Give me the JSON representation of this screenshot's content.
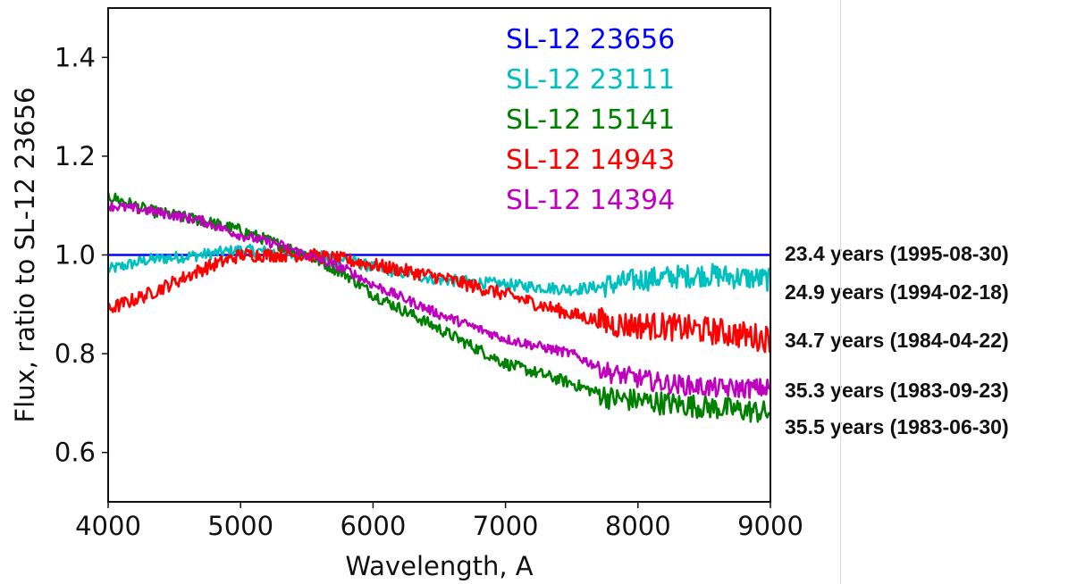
{
  "chart_data": {
    "type": "line",
    "xlabel": "Wavelength, A",
    "ylabel": "Flux, ratio to SL-12 23656",
    "xlim": [
      4000,
      9000
    ],
    "ylim": [
      0.5,
      1.5
    ],
    "xticks": [
      4000,
      5000,
      6000,
      7000,
      8000,
      9000
    ],
    "yticks": [
      0.6,
      0.8,
      1.0,
      1.2,
      1.4
    ],
    "grid": false,
    "legend_position": "top-center (inside plot)",
    "series": [
      {
        "name": "SL-12 23656",
        "color": "#0000ff",
        "noise": 0,
        "points": [
          [
            4000,
            1.0
          ],
          [
            9000,
            1.0
          ]
        ]
      },
      {
        "name": "SL-12 23111",
        "color": "#00bfbf",
        "noise": 0.012,
        "points": [
          [
            4000,
            0.97
          ],
          [
            4300,
            0.99
          ],
          [
            4700,
            1.0
          ],
          [
            5000,
            1.01
          ],
          [
            5300,
            1.005
          ],
          [
            5500,
            1.0
          ],
          [
            5800,
            0.99
          ],
          [
            6000,
            0.975
          ],
          [
            6500,
            0.95
          ],
          [
            7000,
            0.94
          ],
          [
            7500,
            0.93
          ],
          [
            7700,
            0.935
          ],
          [
            8000,
            0.95
          ],
          [
            8500,
            0.96
          ],
          [
            9000,
            0.95
          ]
        ]
      },
      {
        "name": "SL-12 15141",
        "color": "#008000",
        "noise": 0.012,
        "points": [
          [
            4000,
            1.12
          ],
          [
            4300,
            1.09
          ],
          [
            4700,
            1.07
          ],
          [
            5000,
            1.05
          ],
          [
            5300,
            1.02
          ],
          [
            5500,
            1.0
          ],
          [
            5800,
            0.96
          ],
          [
            6000,
            0.92
          ],
          [
            6500,
            0.85
          ],
          [
            7000,
            0.78
          ],
          [
            7500,
            0.74
          ],
          [
            7800,
            0.71
          ],
          [
            8200,
            0.7
          ],
          [
            8600,
            0.69
          ],
          [
            9000,
            0.68
          ]
        ]
      },
      {
        "name": "SL-12 14943",
        "color": "#ff0000",
        "noise": 0.014,
        "points": [
          [
            4000,
            0.89
          ],
          [
            4300,
            0.92
          ],
          [
            4700,
            0.97
          ],
          [
            5000,
            1.0
          ],
          [
            5300,
            1.0
          ],
          [
            5500,
            1.0
          ],
          [
            5800,
            0.99
          ],
          [
            6000,
            0.98
          ],
          [
            6500,
            0.955
          ],
          [
            7000,
            0.92
          ],
          [
            7500,
            0.88
          ],
          [
            7800,
            0.86
          ],
          [
            8200,
            0.855
          ],
          [
            8600,
            0.845
          ],
          [
            9000,
            0.83
          ]
        ]
      },
      {
        "name": "SL-12 14394",
        "color": "#bf00bf",
        "noise": 0.01,
        "points": [
          [
            4000,
            1.1
          ],
          [
            4300,
            1.09
          ],
          [
            4700,
            1.07
          ],
          [
            5000,
            1.04
          ],
          [
            5300,
            1.02
          ],
          [
            5500,
            1.0
          ],
          [
            5800,
            0.97
          ],
          [
            6000,
            0.94
          ],
          [
            6500,
            0.88
          ],
          [
            7000,
            0.83
          ],
          [
            7500,
            0.8
          ],
          [
            7800,
            0.76
          ],
          [
            8200,
            0.74
          ],
          [
            8600,
            0.73
          ],
          [
            9000,
            0.73
          ]
        ]
      }
    ],
    "annotations": [
      {
        "text": "23.4 years (1995-08-30)",
        "y": 1.0
      },
      {
        "text": "24.9 years (1994-02-18)",
        "y": 0.95
      },
      {
        "text": "34.7 years (1984-04-22)",
        "y": 0.85
      },
      {
        "text": "35.3 years (1983-09-23)",
        "y": 0.735
      },
      {
        "text": "35.5 years (1983-06-30)",
        "y": 0.69
      }
    ]
  }
}
